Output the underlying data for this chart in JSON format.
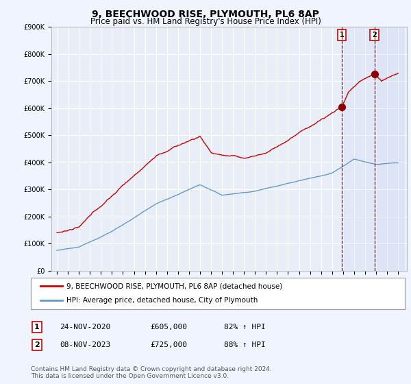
{
  "title": "9, BEECHWOOD RISE, PLYMOUTH, PL6 8AP",
  "subtitle": "Price paid vs. HM Land Registry's House Price Index (HPI)",
  "ylim": [
    0,
    900000
  ],
  "yticks": [
    0,
    100000,
    200000,
    300000,
    400000,
    500000,
    600000,
    700000,
    800000,
    900000
  ],
  "ytick_labels": [
    "£0",
    "£100K",
    "£200K",
    "£300K",
    "£400K",
    "£500K",
    "£600K",
    "£700K",
    "£800K",
    "£900K"
  ],
  "hpi_color": "#6699cc",
  "price_color": "#cc0000",
  "vline_color": "#cc0000",
  "background_color": "#f0f4ff",
  "plot_bg_color": "#e8eef8",
  "grid_color": "#ffffff",
  "legend_label_price": "9, BEECHWOOD RISE, PLYMOUTH, PL6 8AP (detached house)",
  "legend_label_hpi": "HPI: Average price, detached house, City of Plymouth",
  "transaction1_date": "24-NOV-2020",
  "transaction1_price": "£605,000",
  "transaction1_hpi": "82% ↑ HPI",
  "transaction1_label": "1",
  "transaction1_year": 2020.9,
  "transaction1_price_val": 605000,
  "transaction2_date": "08-NOV-2023",
  "transaction2_price": "£725,000",
  "transaction2_hpi": "88% ↑ HPI",
  "transaction2_label": "2",
  "transaction2_year": 2023.85,
  "transaction2_price_val": 725000,
  "footer": "Contains HM Land Registry data © Crown copyright and database right 2024.\nThis data is licensed under the Open Government Licence v3.0.",
  "title_fontsize": 10,
  "subtitle_fontsize": 8.5,
  "tick_fontsize": 7,
  "legend_fontsize": 7.5,
  "footer_fontsize": 6.5
}
